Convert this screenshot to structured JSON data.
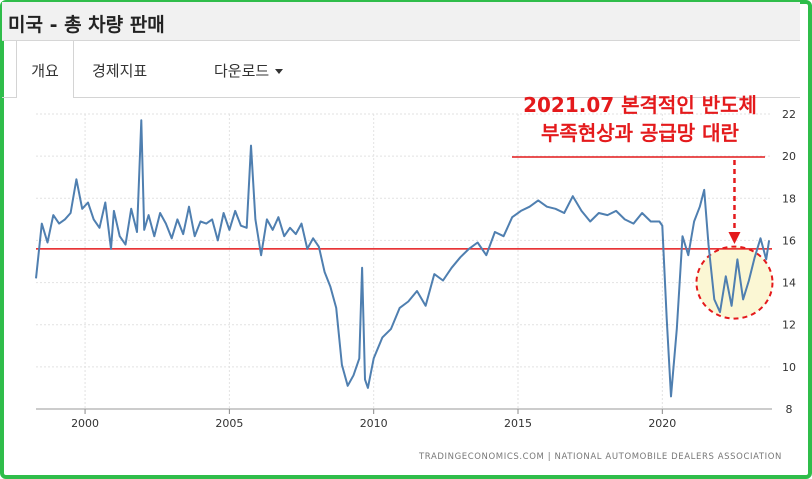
{
  "header": {
    "title": "미국 - 총 차량 판매"
  },
  "tabs": [
    {
      "label": "개요",
      "active": true
    },
    {
      "label": "경제지표",
      "active": false
    },
    {
      "label": "다운로드",
      "active": false,
      "dropdown": true
    }
  ],
  "colors": {
    "line": "#4f7fb0",
    "reference": "#e41a1c",
    "highlight": "#fbf7d4",
    "frame": "#2fbd4a"
  },
  "source": "TRADINGECONOMICS.COM  |  NATIONAL AUTOMOBILE DEALERS ASSOCIATION",
  "annotation": {
    "line1": "2021.07 본격적인 반도체",
    "line2": "부족현상과 공급망 대란"
  },
  "chart_data": {
    "type": "line",
    "title": "",
    "xlabel": "",
    "ylabel": "",
    "xlim": [
      1998.3,
      2023.8
    ],
    "ylim": [
      8,
      22
    ],
    "x_ticks": [
      2000,
      2005,
      2010,
      2015,
      2020
    ],
    "y_ticks": [
      8,
      10,
      12,
      14,
      16,
      18,
      20,
      22
    ],
    "grid": true,
    "y_axis_side": "right",
    "reference_line": 15.6,
    "series": [
      {
        "x": [
          1998.3,
          1998.5,
          1998.7,
          1998.9,
          1999.1,
          1999.3,
          1999.5,
          1999.7,
          1999.9,
          2000.1,
          2000.3,
          2000.5,
          2000.7,
          2000.9,
          2001.0,
          2001.2,
          2001.4,
          2001.6,
          2001.8,
          2001.95,
          2002.05,
          2002.2,
          2002.4,
          2002.6,
          2002.8,
          2003.0,
          2003.2,
          2003.4,
          2003.6,
          2003.8,
          2004.0,
          2004.2,
          2004.4,
          2004.6,
          2004.8,
          2005.0,
          2005.2,
          2005.4,
          2005.6,
          2005.75,
          2005.9,
          2006.1,
          2006.3,
          2006.5,
          2006.7,
          2006.9,
          2007.1,
          2007.3,
          2007.5,
          2007.7,
          2007.9,
          2008.1,
          2008.3,
          2008.5,
          2008.7,
          2008.9,
          2009.1,
          2009.3,
          2009.5,
          2009.6,
          2009.7,
          2009.8,
          2010.0,
          2010.3,
          2010.6,
          2010.9,
          2011.2,
          2011.5,
          2011.8,
          2012.1,
          2012.4,
          2012.7,
          2013.0,
          2013.3,
          2013.6,
          2013.9,
          2014.2,
          2014.5,
          2014.8,
          2015.1,
          2015.4,
          2015.7,
          2016.0,
          2016.3,
          2016.6,
          2016.9,
          2017.2,
          2017.5,
          2017.8,
          2018.1,
          2018.4,
          2018.7,
          2019.0,
          2019.3,
          2019.6,
          2019.9,
          2020.0,
          2020.15,
          2020.3,
          2020.5,
          2020.7,
          2020.9,
          2021.1,
          2021.3,
          2021.45,
          2021.6,
          2021.8,
          2022.0,
          2022.2,
          2022.4,
          2022.6,
          2022.8,
          2023.0,
          2023.2,
          2023.4,
          2023.6,
          2023.7
        ],
        "values": [
          14.2,
          16.8,
          15.9,
          17.2,
          16.8,
          17.0,
          17.3,
          18.9,
          17.5,
          17.8,
          17.0,
          16.6,
          17.8,
          15.6,
          17.4,
          16.2,
          15.8,
          17.5,
          16.4,
          21.7,
          16.5,
          17.2,
          16.2,
          17.3,
          16.8,
          16.1,
          17.0,
          16.3,
          17.6,
          16.2,
          16.9,
          16.8,
          17.0,
          16.0,
          17.3,
          16.5,
          17.4,
          16.7,
          16.6,
          20.5,
          17.0,
          15.3,
          17.0,
          16.5,
          17.1,
          16.2,
          16.6,
          16.3,
          16.8,
          15.6,
          16.1,
          15.7,
          14.5,
          13.8,
          12.8,
          10.1,
          9.1,
          9.6,
          10.4,
          14.7,
          9.4,
          9.0,
          10.4,
          11.4,
          11.8,
          12.8,
          13.1,
          13.6,
          12.9,
          14.4,
          14.1,
          14.7,
          15.2,
          15.6,
          15.9,
          15.3,
          16.4,
          16.2,
          17.1,
          17.4,
          17.6,
          17.9,
          17.6,
          17.5,
          17.3,
          18.1,
          17.4,
          16.9,
          17.3,
          17.2,
          17.4,
          17.0,
          16.8,
          17.3,
          16.9,
          16.9,
          16.7,
          12.3,
          8.6,
          11.8,
          16.2,
          15.3,
          16.9,
          17.6,
          18.4,
          15.8,
          13.2,
          12.6,
          14.3,
          12.9,
          15.1,
          13.2,
          14.1,
          15.2,
          16.1,
          15.1,
          16.0
        ]
      }
    ]
  }
}
